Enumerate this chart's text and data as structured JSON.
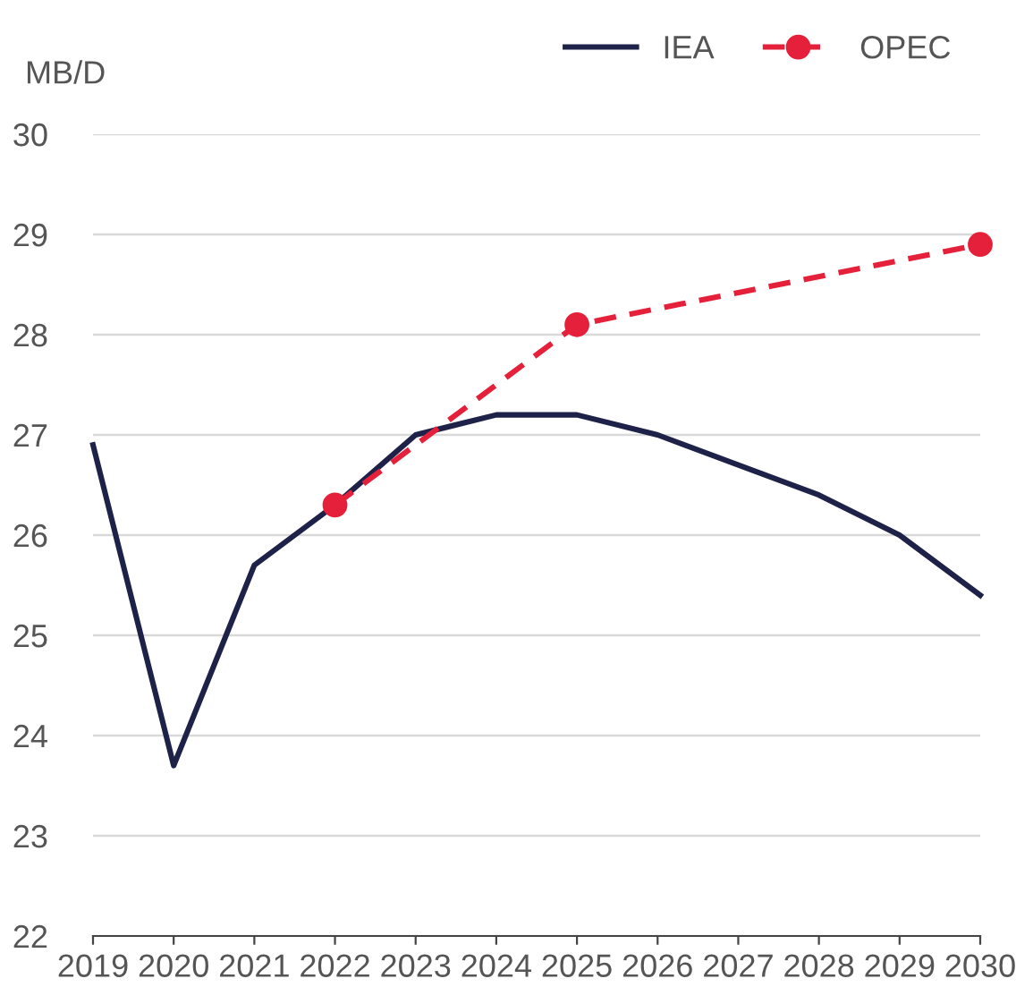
{
  "chart_data": {
    "type": "line",
    "ylabel": "MB/D",
    "series": [
      {
        "name": "IEA",
        "color": "#1f2248",
        "x": [
          2019,
          2020,
          2021,
          2022,
          2023,
          2024,
          2025,
          2026,
          2027,
          2028,
          2029,
          2030
        ],
        "values": [
          26.9,
          23.7,
          25.7,
          26.3,
          27.0,
          27.2,
          27.2,
          27.0,
          26.7,
          26.4,
          26.0,
          25.4
        ],
        "marker": "none",
        "line_style": "solid"
      },
      {
        "name": "OPEC",
        "color": "#e5203a",
        "x": [
          2022,
          2025,
          2030
        ],
        "values": [
          26.3,
          28.1,
          28.9
        ],
        "marker": "circle",
        "line_style": "dashed"
      }
    ],
    "xlim": [
      2019,
      2030
    ],
    "xticks": [
      2019,
      2020,
      2021,
      2022,
      2023,
      2024,
      2025,
      2026,
      2027,
      2028,
      2029,
      2030
    ],
    "ylim": [
      22,
      30
    ],
    "yticks": [
      22,
      23,
      24,
      25,
      26,
      27,
      28,
      29,
      30
    ],
    "grid": "y",
    "legend": "top right"
  }
}
